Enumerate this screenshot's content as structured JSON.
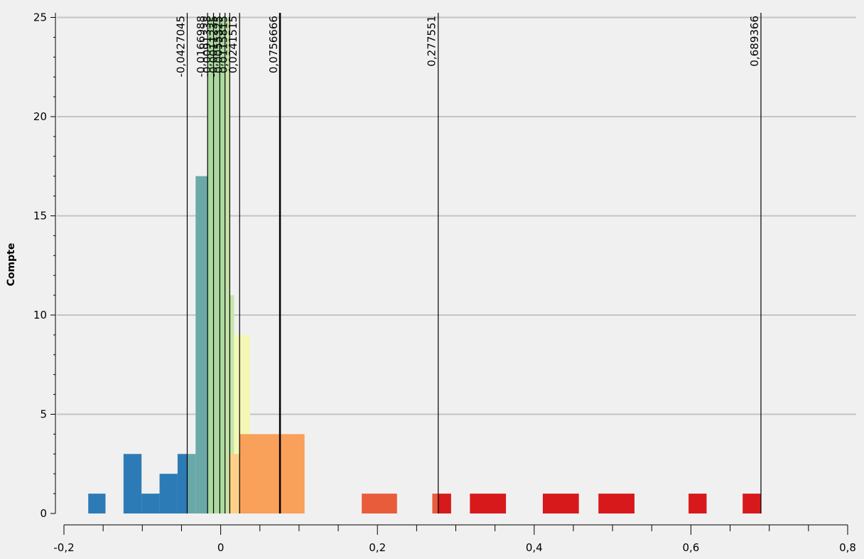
{
  "chart_data": {
    "type": "bar",
    "title": "",
    "xlabel": "",
    "ylabel": "Compte",
    "xlim": [
      -0.2,
      0.8
    ],
    "ylim": [
      0,
      25
    ],
    "grid": true,
    "legend": "none",
    "x_ticks": [
      {
        "value": -0.2,
        "label": "-0,2"
      },
      {
        "value": 0,
        "label": "0"
      },
      {
        "value": 0.2,
        "label": "0,2"
      },
      {
        "value": 0.4,
        "label": "0,4"
      },
      {
        "value": 0.6,
        "label": "0,6"
      },
      {
        "value": 0.8,
        "label": "0,8"
      }
    ],
    "y_ticks": [
      {
        "value": 0,
        "label": "0"
      },
      {
        "value": 5,
        "label": "5"
      },
      {
        "value": 10,
        "label": "10"
      },
      {
        "value": 15,
        "label": "15"
      },
      {
        "value": 20,
        "label": "20"
      },
      {
        "value": 25,
        "label": "25"
      }
    ],
    "series": [
      {
        "color": "#2c7bb6",
        "bins": [
          {
            "x0": -0.169,
            "x1": -0.147,
            "count": 1
          },
          {
            "x0": -0.124,
            "x1": -0.101,
            "count": 3
          },
          {
            "x0": -0.101,
            "x1": -0.078,
            "count": 1
          },
          {
            "x0": -0.078,
            "x1": -0.055,
            "count": 2
          },
          {
            "x0": -0.055,
            "x1": -0.0427,
            "count": 3
          }
        ]
      },
      {
        "color": "#6aa9a8",
        "bins": [
          {
            "x0": -0.0427,
            "x1": -0.032,
            "count": 3
          },
          {
            "x0": -0.032,
            "x1": -0.0167,
            "count": 17
          }
        ]
      },
      {
        "color": "#abd9a0",
        "bins": [
          {
            "x0": -0.0167,
            "x1": -0.009,
            "count": 25
          },
          {
            "x0": -0.009,
            "x1": 0.0,
            "count": 25
          },
          {
            "x0": 0.0,
            "x1": 0.0055,
            "count": 25
          }
        ]
      },
      {
        "color": "#c4e5a8",
        "bins": [
          {
            "x0": 0.0055,
            "x1": 0.0116,
            "count": 25
          },
          {
            "x0": 0.0116,
            "x1": 0.017,
            "count": 11
          }
        ]
      },
      {
        "color": "#f4f7b5",
        "bins": [
          {
            "x0": 0.017,
            "x1": 0.0241,
            "count": 9
          },
          {
            "x0": 0.0241,
            "x1": 0.0375,
            "count": 9
          }
        ]
      },
      {
        "color": "#fdd08a",
        "bins": [
          {
            "x0": 0.0105,
            "x1": 0.0241,
            "count": 3
          }
        ]
      },
      {
        "color": "#f9a05a",
        "bins": [
          {
            "x0": 0.0241,
            "x1": 0.0757,
            "count": 4
          },
          {
            "x0": 0.0757,
            "x1": 0.107,
            "count": 4
          }
        ]
      },
      {
        "color": "#e85c3c",
        "bins": [
          {
            "x0": 0.18,
            "x1": 0.225,
            "count": 1
          },
          {
            "x0": 0.27,
            "x1": 0.2776,
            "count": 1
          }
        ]
      },
      {
        "color": "#d7191c",
        "bins": [
          {
            "x0": 0.2776,
            "x1": 0.294,
            "count": 1
          },
          {
            "x0": 0.318,
            "x1": 0.364,
            "count": 1
          },
          {
            "x0": 0.411,
            "x1": 0.457,
            "count": 1
          },
          {
            "x0": 0.482,
            "x1": 0.528,
            "count": 1
          },
          {
            "x0": 0.597,
            "x1": 0.62,
            "count": 1
          },
          {
            "x0": 0.666,
            "x1": 0.6894,
            "count": 1
          }
        ]
      }
    ],
    "breaks": [
      {
        "value": -0.0427045,
        "label": "-0,0427045"
      },
      {
        "value": -0.0166988,
        "label": "-0,0166988"
      },
      {
        "value": -0.0091338,
        "label": "-0,0091338"
      },
      {
        "value": -0.0011235,
        "label": "-0,0011235"
      },
      {
        "value": 0.0055325,
        "label": "0,0055325"
      },
      {
        "value": 0.0115815,
        "label": "0,0115815"
      },
      {
        "value": 0.0241515,
        "label": "0,0241515"
      },
      {
        "value": 0.0756666,
        "label": "0,0756666"
      },
      {
        "value": 0.277551,
        "label": "0,277551"
      },
      {
        "value": 0.689366,
        "label": "0,689366"
      }
    ]
  }
}
